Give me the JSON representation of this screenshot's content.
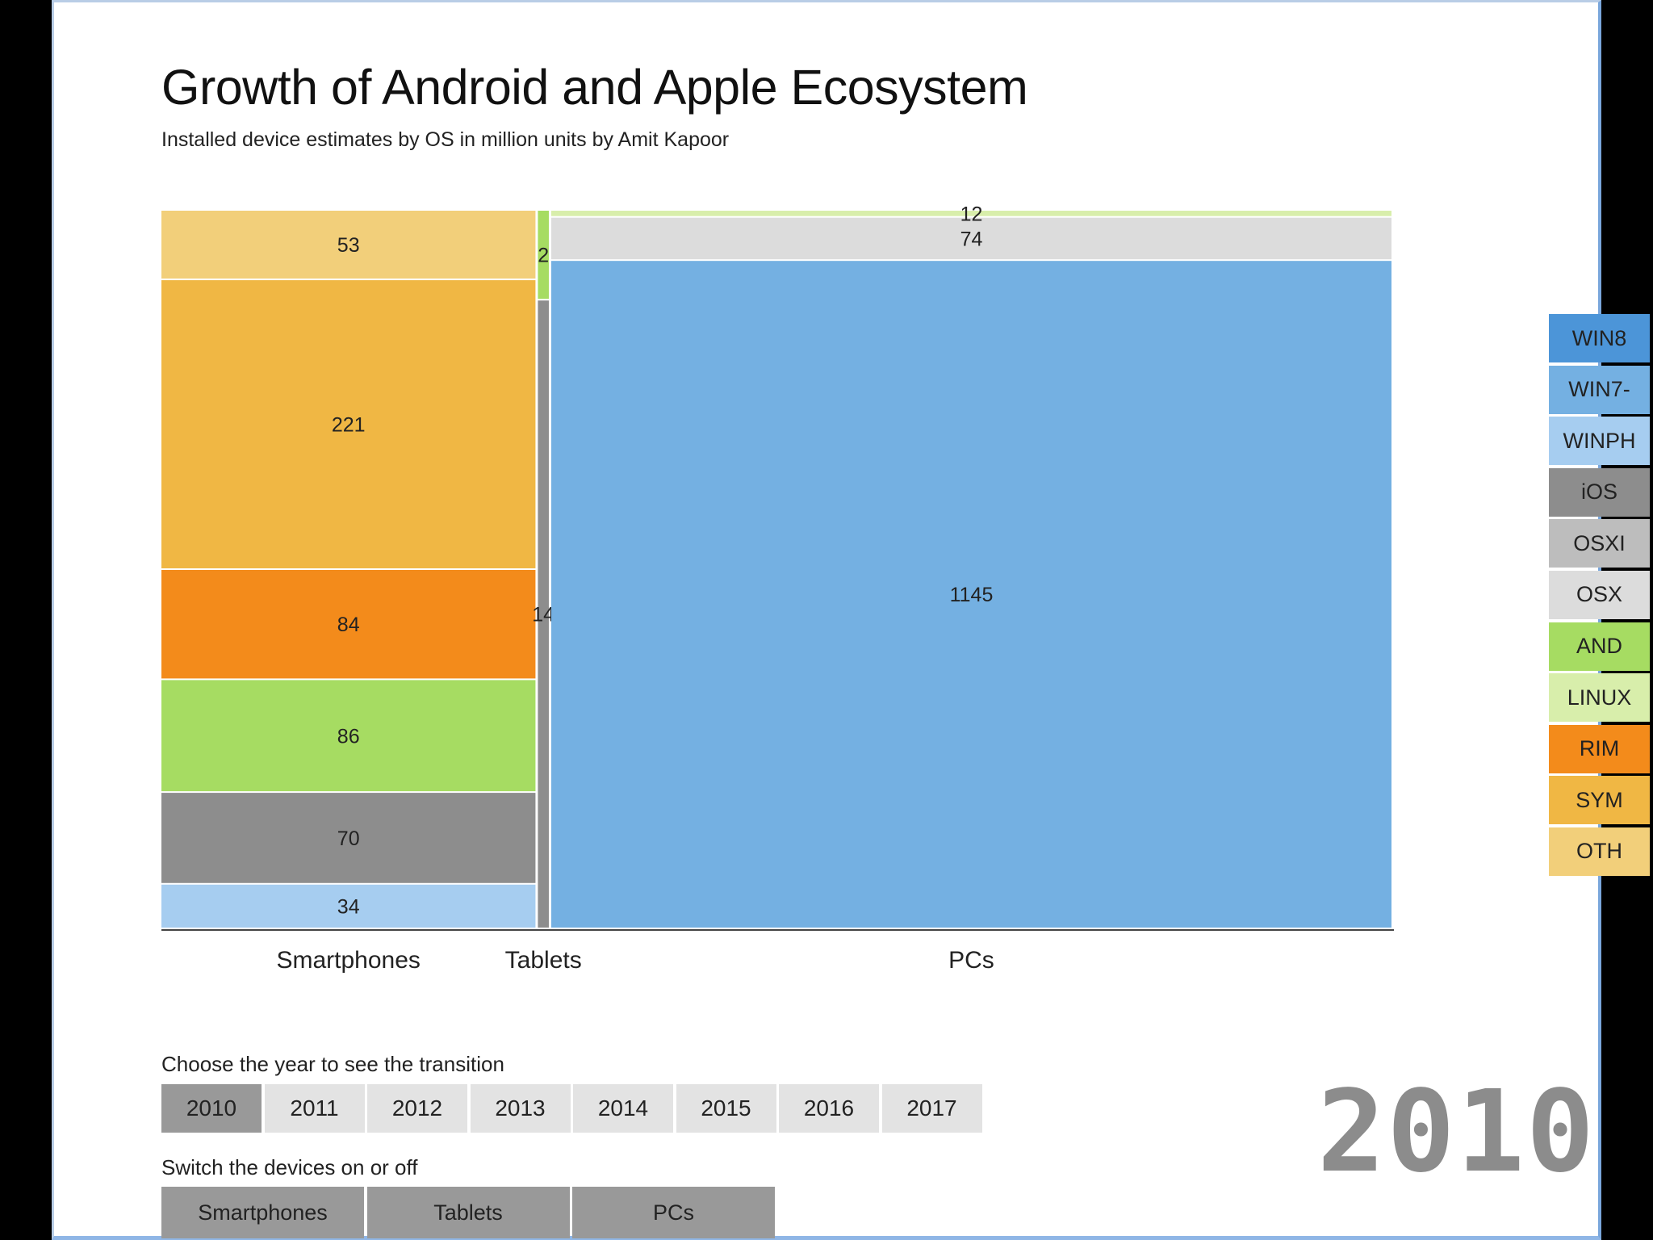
{
  "title": "Growth of Android and Apple Ecosystem",
  "subtitle": "Installed device estimates by OS in million units by Amit Kapoor",
  "legend": [
    {
      "label": "WIN8",
      "color": "#4c95d8"
    },
    {
      "label": "WIN7-",
      "color": "#74b0e2"
    },
    {
      "label": "WINPH",
      "color": "#a6cdf0"
    },
    {
      "label": "iOS",
      "color": "#8d8d8d"
    },
    {
      "label": "OSXI",
      "color": "#bdbdbd"
    },
    {
      "label": "OSX",
      "color": "#dcdcdc"
    },
    {
      "label": "AND",
      "color": "#a6dc62"
    },
    {
      "label": "LINUX",
      "color": "#d8eeab"
    },
    {
      "label": "RIM",
      "color": "#f38b1b"
    },
    {
      "label": "SYM",
      "color": "#f0b744"
    },
    {
      "label": "OTH",
      "color": "#f2cf7a"
    }
  ],
  "controls": {
    "year_prompt": "Choose the year to see the transition",
    "years": [
      "2010",
      "2011",
      "2012",
      "2013",
      "2014",
      "2015",
      "2016",
      "2017"
    ],
    "selected_year": "2010",
    "device_prompt": "Switch the devices on or off",
    "devices": [
      "Smartphones",
      "Tablets",
      "PCs"
    ]
  },
  "big_year": "2010",
  "chart_data": {
    "type": "marimekko",
    "title": "Growth of Android and Apple Ecosystem",
    "subtitle": "Installed device estimates by OS in million units by Amit Kapoor",
    "year": "2010",
    "categories": [
      "Smartphones",
      "Tablets",
      "PCs"
    ],
    "series": [
      {
        "category": "Smartphones",
        "segments": [
          {
            "os": "WINPH",
            "value": 34,
            "label": "34"
          },
          {
            "os": "iOS",
            "value": 70,
            "label": "70"
          },
          {
            "os": "AND",
            "value": 86,
            "label": "86"
          },
          {
            "os": "RIM",
            "value": 84,
            "label": "84"
          },
          {
            "os": "SYM",
            "value": 221,
            "label": "221"
          },
          {
            "os": "OTH",
            "value": 53,
            "label": "53"
          }
        ]
      },
      {
        "category": "Tablets",
        "segments": [
          {
            "os": "iOS",
            "value": 14,
            "label": "14"
          },
          {
            "os": "AND",
            "value": 2,
            "label": "2"
          }
        ]
      },
      {
        "category": "PCs",
        "segments": [
          {
            "os": "WIN7-",
            "value": 1145,
            "label": "1145"
          },
          {
            "os": "OSX",
            "value": 74,
            "label": "74"
          },
          {
            "os": "LINUX",
            "value": 12,
            "label": "12"
          }
        ]
      }
    ]
  }
}
